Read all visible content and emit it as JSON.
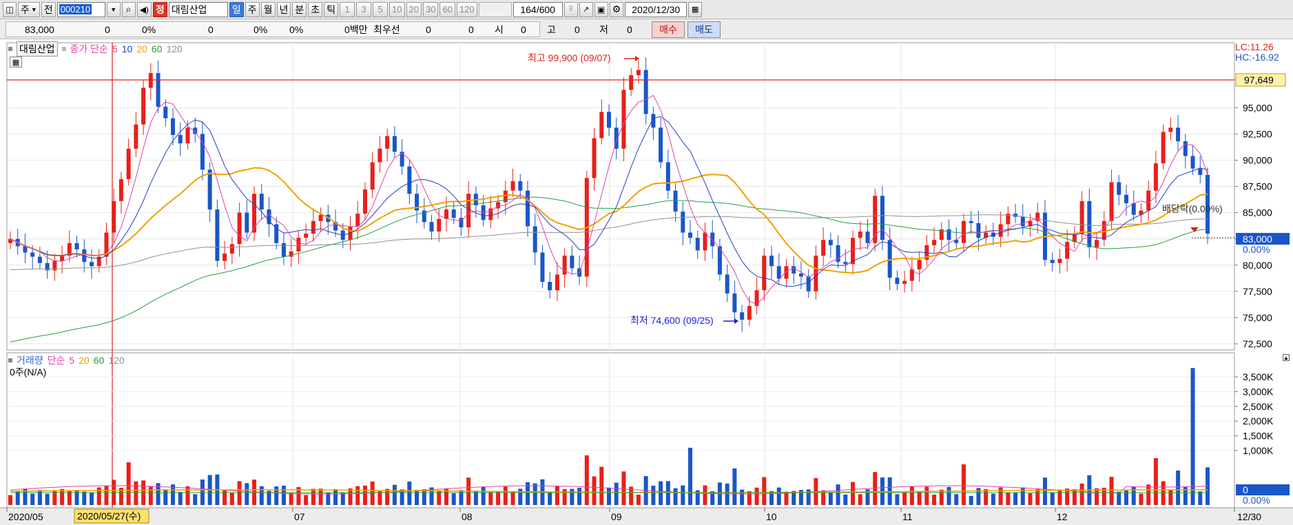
{
  "toolbar": {
    "period_label": "주",
    "before_label": "전",
    "code": "000210",
    "stock_badge": "정",
    "stock_name": "대림산업",
    "periods": [
      "일",
      "주",
      "월",
      "년",
      "분",
      "초",
      "틱"
    ],
    "intervals": [
      "1",
      "3",
      "5",
      "10",
      "20",
      "30",
      "60",
      "120"
    ],
    "count": "164",
    "count_max": "/600",
    "date": "2020/12/30"
  },
  "quote": {
    "price": "83,000",
    "change": "0",
    "change_pct": "0%",
    "volume": "0",
    "vol_pct": "0%",
    "val_pct": "0%",
    "amount": "0백만",
    "best_label": "최우선",
    "best_ask": "0",
    "best_bid": "0",
    "open_label": "시",
    "open": "0",
    "high_label": "고",
    "high": "0",
    "low_label": "저",
    "low": "0",
    "buy_label": "매수",
    "sell_label": "매도"
  },
  "price_legend": {
    "name": "대림산업",
    "series_label": "종가 단순",
    "ma": [
      "5",
      "10",
      "20",
      "60",
      "120"
    ]
  },
  "volume_legend": {
    "name": "거래량",
    "series_label": "단순",
    "ma": [
      "5",
      "20",
      "60",
      "120"
    ],
    "status": "0주(N/A)"
  },
  "corner": {
    "lc": "LC:11.26",
    "hc": "HC:-16.92"
  },
  "colors": {
    "up": "#e8201a",
    "down": "#1a56c8",
    "ma5": "#e040b0",
    "ma10": "#2040c0",
    "ma20": "#f0a000",
    "ma60": "#20a040",
    "ma120": "#909090"
  },
  "chart_data": [
    {
      "type": "candlestick",
      "x_axis": [
        "2020/05",
        "07",
        "08",
        "09",
        "10",
        "11",
        "12",
        "12/30"
      ],
      "cursor_date": "2020/05/27(수)",
      "y_ticks": [
        "95,000",
        "92,500",
        "90,000",
        "87,500",
        "85,000",
        "82,500",
        "80,000",
        "77,500",
        "75,000",
        "72,500"
      ],
      "ylim": [
        72000,
        100000
      ],
      "high_annotation": "최고 99,900 (09/07)",
      "low_annotation": "최저 74,600 (09/25)",
      "current_price_label": "83,000",
      "current_pct_label": "0.00%",
      "hline_value": 97649,
      "hline_label": "97,649",
      "dividend_label": "배당락(0.00%)",
      "close": [
        82500,
        81800,
        81200,
        80800,
        80200,
        79500,
        80400,
        80900,
        82100,
        81500,
        80300,
        79900,
        80800,
        83100,
        86100,
        88200,
        91100,
        93400,
        96900,
        98300,
        95100,
        94000,
        92400,
        91600,
        93100,
        92500,
        89100,
        85300,
        80400,
        81100,
        82000,
        85000,
        83100,
        86800,
        85300,
        83900,
        82100,
        80800,
        81300,
        82600,
        83000,
        84200,
        84800,
        84100,
        83300,
        82400,
        83700,
        84900,
        87200,
        89800,
        91100,
        92300,
        90800,
        89400,
        86800,
        85200,
        84100,
        83200,
        84400,
        85300,
        84500,
        83600,
        86800,
        85700,
        84300,
        85400,
        86000,
        87100,
        88000,
        87100,
        83700,
        81200,
        78400,
        77600,
        79100,
        80900,
        79700,
        78900,
        88300,
        92100,
        94600,
        93100,
        91100,
        96700,
        98100,
        98600,
        94400,
        93100,
        89800,
        87100,
        85100,
        83100,
        82600,
        81400,
        83100,
        81800,
        79100,
        77300,
        75500,
        74800,
        76100,
        77600,
        80900,
        79900,
        78700,
        79900,
        79200,
        78900,
        77500,
        80900,
        82400,
        81900,
        80300,
        80100,
        82600,
        83200,
        82100,
        86600,
        82400,
        78800,
        78200,
        78500,
        79600,
        80500,
        81900,
        82400,
        83400,
        82400,
        82100,
        84200,
        84000,
        82600,
        83100,
        82700,
        83900,
        84900,
        84600,
        83700,
        84200,
        85000,
        80500,
        80200,
        80600,
        82200,
        83000,
        86100,
        81700,
        82400,
        84200,
        87900,
        86700,
        85900,
        84800,
        85200,
        87100,
        89700,
        92700,
        93100,
        91800,
        90400,
        89200,
        88600,
        83000
      ]
    },
    {
      "type": "bar",
      "title": "",
      "y_ticks": [
        "3,500K",
        "3,000K",
        "2,500K",
        "2,000K",
        "1,500K",
        "1,000K"
      ],
      "ylim": [
        0,
        4000
      ],
      "current_label": "0",
      "current_pct_label": "0.00%"
    }
  ]
}
